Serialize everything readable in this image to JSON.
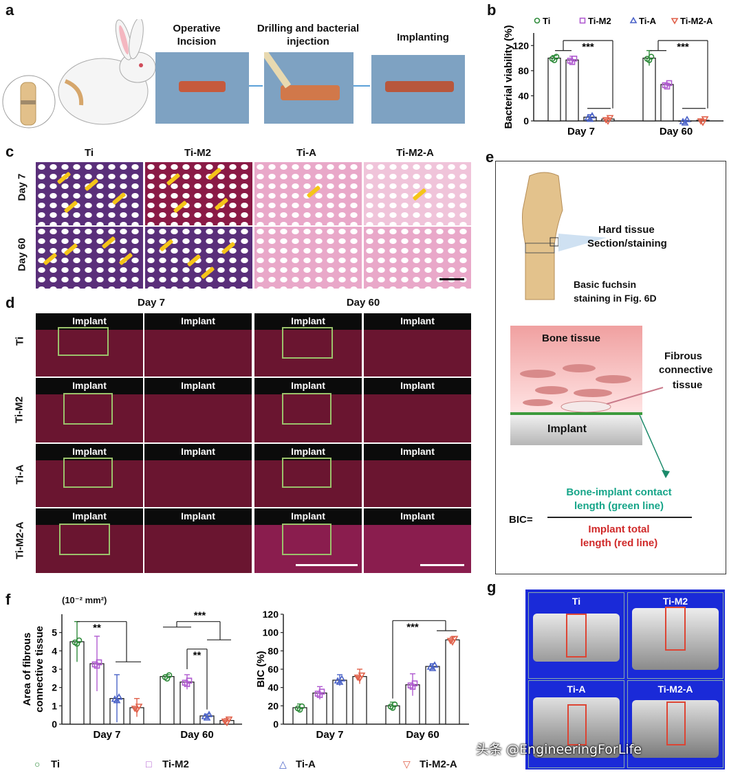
{
  "panels": {
    "a": {
      "letter": "a",
      "steps": [
        "Operative\nIncision",
        "Drilling and bacterial\ninjection",
        "Implanting"
      ]
    },
    "b": {
      "letter": "b"
    },
    "c": {
      "letter": "c",
      "columns": [
        "Ti",
        "Ti-M2",
        "Ti-A",
        "Ti-M2-A"
      ],
      "rows": [
        "Day 7",
        "Day 60"
      ]
    },
    "d": {
      "letter": "d",
      "day_headers": [
        "Day 7",
        "Day 60"
      ],
      "rows": [
        "Ti",
        "Ti-M2",
        "Ti-A",
        "Ti-M2-A"
      ],
      "implant_label": "Implant"
    },
    "e": {
      "letter": "e",
      "hard_tissue": "Hard tissue",
      "section_staining": "Section/staining",
      "basic_fuchsin": "Basic fuchsin",
      "staining_in_fig": "staining in Fig. 6D",
      "bone_tissue": "Bone tissue",
      "fibrous1": "Fibrous",
      "fibrous2": "connective",
      "fibrous3": "tissue",
      "implant": "Implant",
      "bic_label": "BIC=",
      "numerator1": "Bone-implant contact",
      "numerator2": "length (green line)",
      "denominator1": "Implant total",
      "denominator2": "length (red line)"
    },
    "f": {
      "letter": "f",
      "unit": "(10⁻² mm²)"
    },
    "g": {
      "letter": "g",
      "labels": [
        "Ti",
        "Ti-M2",
        "Ti-A",
        "Ti-M2-A"
      ]
    }
  },
  "legend_bottom": [
    "Ti",
    "Ti-M2",
    "Ti-A",
    "Ti-M2-A"
  ],
  "watermark": "头条 @EngineeringForLife",
  "colors": {
    "Ti": "#2e8b3a",
    "Ti-M2": "#b05ad0",
    "Ti-A": "#4a62c8",
    "Ti-M2-A": "#e0604a"
  },
  "chart_data": [
    {
      "id": "b",
      "type": "bar",
      "ylabel": "Bacterial viability (%)",
      "categories": [
        "Day 7",
        "Day 60"
      ],
      "ylim": [
        0,
        140
      ],
      "yticks": [
        0,
        40,
        80,
        120
      ],
      "legend": [
        "Ti",
        "Ti-M2",
        "Ti-A",
        "Ti-M2-A"
      ],
      "legend_placement": "top",
      "series": [
        {
          "name": "Ti",
          "values": [
            100,
            100
          ],
          "errors": [
            4,
            12
          ]
        },
        {
          "name": "Ti-M2",
          "values": [
            97,
            58
          ],
          "errors": [
            6,
            2
          ]
        },
        {
          "name": "Ti-A",
          "values": [
            6,
            0
          ],
          "errors": [
            4,
            1
          ]
        },
        {
          "name": "Ti-M2-A",
          "values": [
            3,
            1
          ],
          "errors": [
            2,
            1
          ]
        }
      ],
      "annotations": [
        "***",
        "***"
      ]
    },
    {
      "id": "f1",
      "type": "bar",
      "ylabel": "Area of fibrous\nconnective tissue",
      "categories": [
        "Day 7",
        "Day 60"
      ],
      "ylim": [
        0,
        6
      ],
      "yticks": [
        0,
        1,
        2,
        3,
        4,
        5
      ],
      "series": [
        {
          "name": "Ti",
          "values": [
            4.5,
            2.6
          ],
          "errors": [
            1.1,
            0.1
          ]
        },
        {
          "name": "Ti-M2",
          "values": [
            3.3,
            2.3
          ],
          "errors": [
            1.5,
            0.4
          ]
        },
        {
          "name": "Ti-A",
          "values": [
            1.4,
            0.45
          ],
          "errors": [
            1.3,
            0.1
          ]
        },
        {
          "name": "Ti-M2-A",
          "values": [
            0.9,
            0.2
          ],
          "errors": [
            0.5,
            0.1
          ]
        }
      ],
      "annotations": [
        "**",
        "***",
        "**"
      ]
    },
    {
      "id": "f2",
      "type": "bar",
      "ylabel": "BIC (%)",
      "categories": [
        "Day 7",
        "Day 60"
      ],
      "ylim": [
        0,
        120
      ],
      "yticks": [
        0,
        20,
        40,
        60,
        80,
        100,
        120
      ],
      "series": [
        {
          "name": "Ti",
          "values": [
            18,
            20
          ],
          "errors": [
            4,
            4
          ]
        },
        {
          "name": "Ti-M2",
          "values": [
            34,
            43
          ],
          "errors": [
            7,
            12
          ]
        },
        {
          "name": "Ti-A",
          "values": [
            48,
            63
          ],
          "errors": [
            6,
            3
          ]
        },
        {
          "name": "Ti-M2-A",
          "values": [
            52,
            92
          ],
          "errors": [
            8,
            3
          ]
        }
      ],
      "annotations": [
        "***"
      ]
    }
  ]
}
